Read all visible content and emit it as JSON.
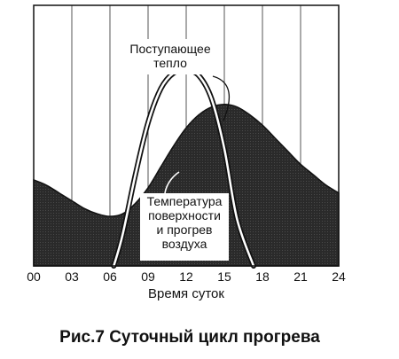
{
  "chart_data": {
    "type": "area",
    "xlabel": "Время суток",
    "x_ticks": [
      "00",
      "03",
      "06",
      "09",
      "12",
      "15",
      "18",
      "21",
      "24"
    ],
    "xlim": [
      0,
      24
    ],
    "ylim": [
      0,
      1
    ],
    "grid": "vertical",
    "series": [
      {
        "name": "Температура поверхности и прогрев воздуха",
        "style": "filled-dark",
        "x": [
          0,
          1,
          2,
          3,
          4,
          5,
          6,
          7,
          8,
          9,
          10,
          11,
          12,
          13,
          14,
          15,
          16,
          17,
          18,
          19,
          20,
          21,
          22,
          23,
          24
        ],
        "values": [
          0.33,
          0.31,
          0.28,
          0.25,
          0.22,
          0.2,
          0.19,
          0.2,
          0.24,
          0.3,
          0.38,
          0.46,
          0.53,
          0.58,
          0.61,
          0.62,
          0.61,
          0.58,
          0.54,
          0.49,
          0.44,
          0.39,
          0.35,
          0.31,
          0.28
        ]
      },
      {
        "name": "Поступающее тепло",
        "style": "line",
        "x": [
          6.3,
          7,
          8,
          9,
          10,
          11,
          12,
          13,
          14,
          15,
          16,
          17.3
        ],
        "values": [
          0.0,
          0.12,
          0.35,
          0.55,
          0.68,
          0.74,
          0.75,
          0.73,
          0.64,
          0.45,
          0.18,
          0.0
        ]
      }
    ],
    "annotations": [
      {
        "lines": [
          "Поступающее",
          "тепло"
        ],
        "points_to": "Поступающее тепло"
      },
      {
        "lines": [
          "Температура",
          "поверхности",
          "и прогрев",
          "воздуха"
        ],
        "points_to": "Температура поверхности и прогрев воздуха"
      }
    ]
  },
  "caption": "Рис.7 Суточный цикл прогрева"
}
